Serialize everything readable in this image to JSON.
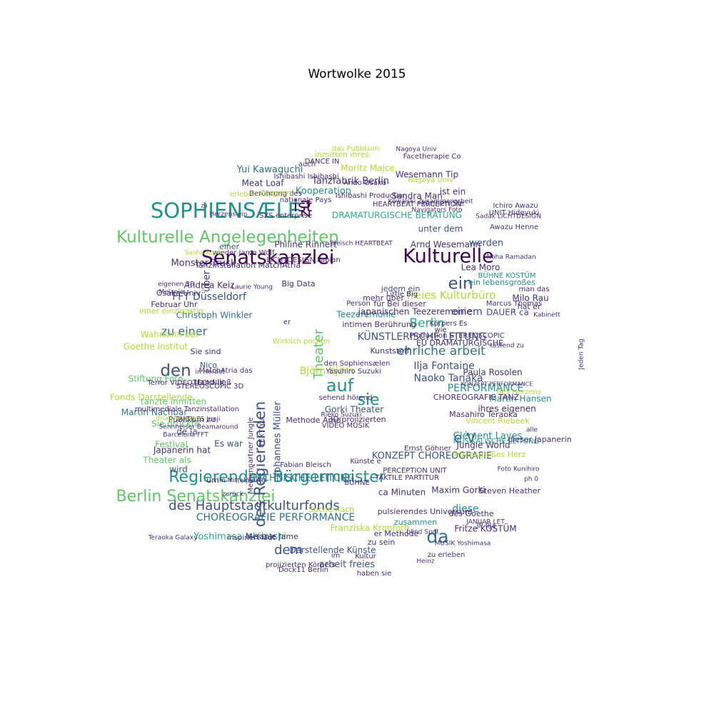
{
  "title": "Wortwolke 2015",
  "palette": [
    "#440154",
    "#472d7b",
    "#3b528b",
    "#2c728e",
    "#21918c",
    "#28ae80",
    "#5ec962",
    "#addc30",
    "#fde725"
  ],
  "words": [
    {
      "text": "Senatskanzlei",
      "color": "#440154"
    },
    {
      "text": "Kulturelle",
      "color": "#440154"
    },
    {
      "text": "SOPHIENSÆLE",
      "color": "#21918c"
    },
    {
      "text": "ist",
      "color": "#440154"
    },
    {
      "text": "zu",
      "color": "#440154"
    },
    {
      "text": "Kulturelle Angelegenheiten",
      "color": "#5ec962"
    },
    {
      "text": "Regierenden Bürgermeister",
      "color": "#21918c"
    },
    {
      "text": "Berlin Senatskanzlei",
      "color": "#5ec962"
    },
    {
      "text": "des Hauptstadtkulturfonds",
      "color": "#3b528b"
    },
    {
      "text": "des Regierenden",
      "color": "#3b528b"
    },
    {
      "text": "den",
      "color": "#3b528b"
    },
    {
      "text": "auf",
      "color": "#21918c"
    },
    {
      "text": "sie",
      "color": "#21918c"
    },
    {
      "text": "ein",
      "color": "#3b528b"
    },
    {
      "text": "Theater",
      "color": "#5ec962"
    },
    {
      "text": "da",
      "color": "#2c728e"
    },
    {
      "text": "dem",
      "color": "#3b528b"
    },
    {
      "text": "Berlin",
      "color": "#28ae80"
    },
    {
      "text": "FFT Düsseldorf",
      "color": "#3b528b"
    },
    {
      "text": "Tanzfabrik Berlin",
      "color": "#472d7b"
    },
    {
      "text": "Kooperation",
      "color": "#21918c"
    },
    {
      "text": "Yui Kawaguchi",
      "color": "#2c728e"
    },
    {
      "text": "Moritz Majce",
      "color": "#addc30"
    },
    {
      "text": "Philine Rinnert",
      "color": "#472d7b"
    },
    {
      "text": "Arnd Wesemann",
      "color": "#472d7b"
    },
    {
      "text": "Monster Truck",
      "color": "#472d7b"
    },
    {
      "text": "Andrea Keiz",
      "color": "#472d7b"
    },
    {
      "text": "zu einer",
      "color": "#2c728e"
    },
    {
      "text": "Goethe Institut",
      "color": "#addc30"
    },
    {
      "text": "Stiftung Foto",
      "color": "#5ec962"
    },
    {
      "text": "Fonds Darstellende",
      "color": "#addc30"
    },
    {
      "text": "Martin Nachbar",
      "color": "#2c728e"
    },
    {
      "text": "Christoph Winkler",
      "color": "#2c728e"
    },
    {
      "text": "Johannes Müller",
      "color": "#3b528b"
    },
    {
      "text": "Björn björn",
      "color": "#addc30"
    },
    {
      "text": "ehrliche arbeit",
      "color": "#2c728e"
    },
    {
      "text": "freies Kulturbüro",
      "color": "#addc30"
    },
    {
      "text": "KÜNSTLERISCHE LEITUNG",
      "color": "#3b528b"
    },
    {
      "text": "Ilja Fontaine",
      "color": "#3b528b"
    },
    {
      "text": "Naoko Tanaka",
      "color": "#3b528b"
    },
    {
      "text": "PERFORMANCE",
      "color": "#21918c"
    },
    {
      "text": "Paula Rosolen",
      "color": "#472d7b"
    },
    {
      "text": "einem",
      "color": "#3b528b"
    },
    {
      "text": "e V",
      "color": "#3b528b"
    },
    {
      "text": "Clément Layes",
      "color": "#21918c"
    },
    {
      "text": "Jungle World",
      "color": "#472d7b"
    },
    {
      "text": "KONZEPT CHOREOGRAFIE",
      "color": "#3b528b"
    },
    {
      "text": "CHOREOGRAFIE PERFORMANCE",
      "color": "#2c728e"
    },
    {
      "text": "TECHNISCHE LEITUNG",
      "color": "#2c728e"
    },
    {
      "text": "Yoshimasa Ishibashi",
      "color": "#28ae80"
    },
    {
      "text": "Darstellende Künste",
      "color": "#3b528b"
    },
    {
      "text": "arbeit freies",
      "color": "#3b528b"
    },
    {
      "text": "Maxim Gorki",
      "color": "#472d7b"
    },
    {
      "text": "ca Minuten",
      "color": "#472d7b"
    },
    {
      "text": "diese",
      "color": "#21918c"
    },
    {
      "text": "werden",
      "color": "#3b528b"
    },
    {
      "text": "Lea Moro",
      "color": "#472d7b"
    },
    {
      "text": "Sandra Man",
      "color": "#472d7b"
    },
    {
      "text": "DRAMATURGISCHE BERATUNG",
      "color": "#28ae80"
    },
    {
      "text": "Wesemann Tip",
      "color": "#472d7b"
    },
    {
      "text": "Meat Loaf",
      "color": "#472d7b"
    },
    {
      "text": "Gorki Theater",
      "color": "#3b528b"
    },
    {
      "text": "Methode Arnd",
      "color": "#472d7b"
    },
    {
      "text": "Kunststoff",
      "color": "#472d7b"
    },
    {
      "text": "Big Data",
      "color": "#472d7b"
    },
    {
      "text": "Teezeremonie",
      "color": "#21918c"
    },
    {
      "text": "inspiriert lädt",
      "color": "#472d7b"
    },
    {
      "text": "Franziska Kronfoth",
      "color": "#addc30"
    },
    {
      "text": "zusammen",
      "color": "#21918c"
    },
    {
      "text": "Melanie Jame",
      "color": "#472d7b"
    },
    {
      "text": "Martin Hansen",
      "color": "#21918c"
    },
    {
      "text": "Milo Rau",
      "color": "#472d7b"
    },
    {
      "text": "DAUER ca",
      "color": "#3b528b"
    },
    {
      "text": "Festival",
      "color": "#5ec962"
    },
    {
      "text": "de la",
      "color": "#3b528b"
    },
    {
      "text": "Es war",
      "color": "#3b528b"
    },
    {
      "text": "Theater als",
      "color": "#5ec962"
    },
    {
      "text": "tanzte inmitten",
      "color": "#5ec962"
    },
    {
      "text": "Japanerin hat",
      "color": "#472d7b"
    },
    {
      "text": "wird",
      "color": "#3b528b"
    },
    {
      "text": "um",
      "color": "#472d7b"
    },
    {
      "text": "Sie drückte",
      "color": "#5ec962"
    },
    {
      "text": "Publikum zu",
      "color": "#472d7b"
    },
    {
      "text": "Hand ließ",
      "color": "#472d7b"
    },
    {
      "text": "Nico",
      "color": "#3b528b"
    },
    {
      "text": "Wahnsinn bei",
      "color": "#addc30"
    },
    {
      "text": "einer einzigartig",
      "color": "#addc30"
    },
    {
      "text": "Februar Uhr",
      "color": "#472d7b"
    },
    {
      "text": "Osaka Univ",
      "color": "#472d7b"
    },
    {
      "text": "über",
      "color": "#472d7b"
    },
    {
      "text": "einer",
      "color": "#3b528b"
    },
    {
      "text": "wieder Jame Wolf",
      "color": "#472d7b"
    },
    {
      "text": "Tanzinstallation MatchAtria",
      "color": "#472d7b"
    },
    {
      "text": "SXS enterprise",
      "color": "#472d7b"
    },
    {
      "text": "unter dem",
      "color": "#3b528b"
    },
    {
      "text": "können Sie",
      "color": "#3b528b"
    },
    {
      "text": "ist ein",
      "color": "#472d7b"
    },
    {
      "text": "BÜHNE KOSTÜM",
      "color": "#21918c"
    },
    {
      "text": "ein lebensgroßes",
      "color": "#21918c"
    },
    {
      "text": "das Publikum",
      "color": "#addc30"
    },
    {
      "text": "inmitten ihres",
      "color": "#addc30"
    },
    {
      "text": "Facetherapie Co",
      "color": "#472d7b"
    },
    {
      "text": "jedem ein",
      "color": "#3b528b"
    },
    {
      "text": "mehr über",
      "color": "#472d7b"
    },
    {
      "text": "für Bei dieser",
      "color": "#472d7b"
    },
    {
      "text": "japanischen Teezeremonie",
      "color": "#472d7b"
    },
    {
      "text": "intimen Berührung",
      "color": "#472d7b"
    },
    {
      "text": "den Sophiensælen",
      "color": "#472d7b"
    },
    {
      "text": "Künste e",
      "color": "#472d7b"
    },
    {
      "text": "BÜHNE",
      "color": "#472d7b"
    },
    {
      "text": "3D projizierten",
      "color": "#472d7b"
    },
    {
      "text": "Suche nach",
      "color": "#addc30"
    },
    {
      "text": "pulsierendes Universum",
      "color": "#472d7b"
    },
    {
      "text": "zu sein",
      "color": "#472d7b"
    },
    {
      "text": "er Methode",
      "color": "#472d7b"
    },
    {
      "text": "haben sie",
      "color": "#472d7b"
    },
    {
      "text": "Fritze KOSTÜM",
      "color": "#472d7b"
    },
    {
      "text": "MUSIKALISCHE LEITUNG",
      "color": "#21918c"
    },
    {
      "text": "lebensgroßes Herz",
      "color": "#addc30"
    },
    {
      "text": "Vincent Riebeek",
      "color": "#addc30"
    },
    {
      "text": "ihres eigenen",
      "color": "#472d7b"
    },
    {
      "text": "CHOREOGRAFIE TANZ",
      "color": "#472d7b"
    },
    {
      "text": "Masahiro Teraoka",
      "color": "#472d7b"
    },
    {
      "text": "des Herzens",
      "color": "#addc30"
    },
    {
      "text": "hat er",
      "color": "#472d7b"
    },
    {
      "text": "dieser Japanerin",
      "color": "#472d7b"
    },
    {
      "text": "Production STEREOSCOPIC",
      "color": "#472d7b"
    },
    {
      "text": "EU DRAMATURGISCHE",
      "color": "#472d7b"
    },
    {
      "text": "des Goethe",
      "color": "#472d7b"
    },
    {
      "text": "Steven Heather",
      "color": "#472d7b"
    },
    {
      "text": "Dock11 Berlin",
      "color": "#472d7b"
    },
    {
      "text": "projizierten Körpers",
      "color": "#472d7b"
    },
    {
      "text": "im",
      "color": "#472d7b"
    },
    {
      "text": "Kultur",
      "color": "#472d7b"
    },
    {
      "text": "Fabian Bleisch",
      "color": "#472d7b"
    },
    {
      "text": "TAKTILE PARTITUR",
      "color": "#472d7b"
    },
    {
      "text": "PERCEPTION UNIT",
      "color": "#472d7b"
    },
    {
      "text": "Ishibashi Production",
      "color": "#472d7b"
    },
    {
      "text": "Ando Osaka",
      "color": "#472d7b"
    },
    {
      "text": "Nagoya Univ",
      "color": "#addc30"
    },
    {
      "text": "Ishibashi Ishibashi",
      "color": "#472d7b"
    },
    {
      "text": "UNIT Hideyuki",
      "color": "#472d7b"
    },
    {
      "text": "Awazu Henne",
      "color": "#472d7b"
    },
    {
      "text": "Ichiro Awazu",
      "color": "#472d7b"
    },
    {
      "text": "man das",
      "color": "#472d7b"
    },
    {
      "text": "Marcus Thomas",
      "color": "#472d7b"
    },
    {
      "text": "Little Big",
      "color": "#472d7b"
    },
    {
      "text": "Person",
      "color": "#472d7b"
    },
    {
      "text": "wie",
      "color": "#472d7b"
    },
    {
      "text": "Körpers Es",
      "color": "#472d7b"
    },
    {
      "text": "er",
      "color": "#472d7b"
    },
    {
      "text": "Wirklich pochen",
      "color": "#addc30"
    },
    {
      "text": "Sie sind",
      "color": "#472d7b"
    },
    {
      "text": "MatchAtria das",
      "color": "#472d7b"
    },
    {
      "text": "STEREOSCOPIC 3D",
      "color": "#472d7b"
    },
    {
      "text": "Terror VIDEOTECHNIK",
      "color": "#472d7b"
    },
    {
      "text": "Barcelona FFT",
      "color": "#472d7b"
    },
    {
      "text": "Teraoka Galaxy",
      "color": "#472d7b"
    },
    {
      "text": "multimediale Tanzinstallation",
      "color": "#472d7b"
    },
    {
      "text": "Medienpartner Jungle",
      "color": "#472d7b"
    },
    {
      "text": "TEXT Yui",
      "color": "#472d7b"
    },
    {
      "text": "VIDEO MUSIK",
      "color": "#472d7b"
    },
    {
      "text": "Rieko Suzuki",
      "color": "#472d7b"
    },
    {
      "text": "sehend hörend",
      "color": "#472d7b"
    },
    {
      "text": "Yasuhiro Suzuki",
      "color": "#472d7b"
    },
    {
      "text": "LICHTDESIGN Fabian",
      "color": "#472d7b"
    },
    {
      "text": "Laurie Young",
      "color": "#472d7b"
    },
    {
      "text": "DANCE IN",
      "color": "#472d7b"
    },
    {
      "text": "Nagoya Univ",
      "color": "#472d7b"
    },
    {
      "text": "auch",
      "color": "#472d7b"
    },
    {
      "text": "Berührung des",
      "color": "#472d7b"
    },
    {
      "text": "erleben KONZEPT",
      "color": "#addc30"
    },
    {
      "text": "nationale Pays",
      "color": "#472d7b"
    },
    {
      "text": "HEARTBEAT PERCEPTION",
      "color": "#472d7b"
    },
    {
      "text": "Bleisch HEARTBEAT",
      "color": "#472d7b"
    },
    {
      "text": "TAKTILES Junji",
      "color": "#472d7b"
    },
    {
      "text": "Sennheiser Beamaround",
      "color": "#472d7b"
    },
    {
      "text": "Ernst Göhner",
      "color": "#472d7b"
    },
    {
      "text": "MUSIK Yoshimasa",
      "color": "#472d7b"
    },
    {
      "text": "Heinz",
      "color": "#472d7b"
    },
    {
      "text": "zu erleben",
      "color": "#472d7b"
    },
    {
      "text": "blind Spot",
      "color": "#472d7b"
    },
    {
      "text": "JP Ilja",
      "color": "#472d7b"
    },
    {
      "text": "JANUAR LET",
      "color": "#472d7b"
    },
    {
      "text": "Foto Kunihiro",
      "color": "#472d7b"
    },
    {
      "text": "ph 0",
      "color": "#472d7b"
    },
    {
      "text": "alle",
      "color": "#472d7b"
    },
    {
      "text": "Kabinett",
      "color": "#472d7b"
    },
    {
      "text": "Jeden Tag",
      "color": "#472d7b"
    },
    {
      "text": "tastend zu",
      "color": "#472d7b"
    },
    {
      "text": "Navigators Foto",
      "color": "#472d7b"
    },
    {
      "text": "Kowalski Zusammenarbeit",
      "color": "#472d7b"
    },
    {
      "text": "Sadak LICHTDESIGN",
      "color": "#472d7b"
    },
    {
      "text": "KONZEPT PERFORMANCE",
      "color": "#472d7b"
    },
    {
      "text": "Noha Ramadan",
      "color": "#472d7b"
    },
    {
      "text": "Herzens ein",
      "color": "#472d7b"
    },
    {
      "text": "Sasha Kovac",
      "color": "#addc30"
    },
    {
      "text": "eigenen 3D",
      "color": "#472d7b"
    },
    {
      "text": "Melanie",
      "color": "#472d7b"
    },
    {
      "text": "drückte jedem",
      "color": "#addc30"
    },
    {
      "text": "im Mittelpunkt",
      "color": "#472d7b"
    },
    {
      "text": "in Herbst",
      "color": "#472d7b"
    },
    {
      "text": "zurück",
      "color": "#472d7b"
    },
    {
      "text": "zu",
      "color": "#472d7b"
    }
  ]
}
